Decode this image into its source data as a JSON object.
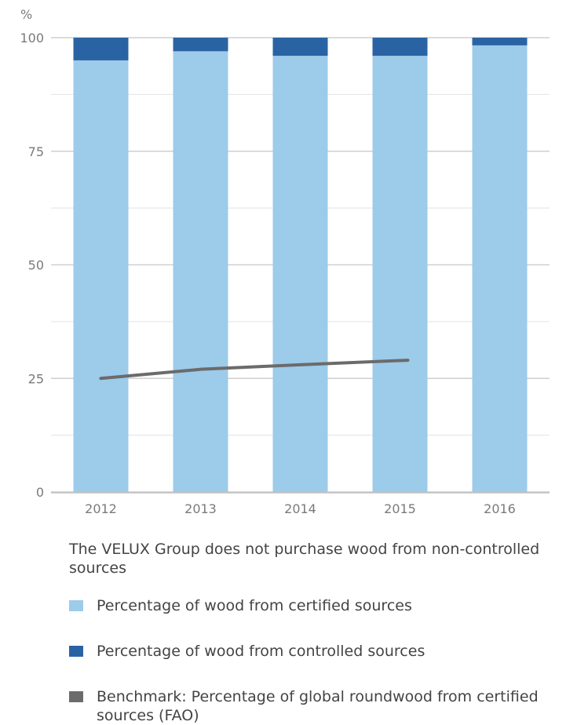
{
  "chart_data": {
    "type": "bar",
    "stacked": true,
    "ylabel": "%",
    "ylim": [
      0,
      100
    ],
    "yticks": [
      0,
      25,
      50,
      75,
      100
    ],
    "grid": true,
    "categories": [
      "2012",
      "2013",
      "2014",
      "2015",
      "2016"
    ],
    "series": [
      {
        "name": "Percentage of wood from certified sources",
        "kind": "bar",
        "color": "#9dcbea",
        "values": [
          95,
          97,
          96,
          96,
          98.3
        ]
      },
      {
        "name": "Percentage of wood from controlled sources",
        "kind": "bar",
        "color": "#2a63a3",
        "values": [
          5,
          3,
          4,
          4,
          1.7
        ]
      },
      {
        "name": "Benchmark: Percentage of global roundwood from certified sources (FAO)",
        "kind": "line",
        "color": "#6b6b6b",
        "x": [
          "2012",
          "2013",
          "2014",
          "2015"
        ],
        "values": [
          25,
          27,
          28,
          29
        ]
      }
    ]
  },
  "note": "The VELUX Group does not purchase wood from non-controlled sources",
  "legend": [
    {
      "label": "Percentage of wood from certified sources",
      "color": "#9dcbea"
    },
    {
      "label": "Percentage of wood from controlled sources",
      "color": "#2a63a3"
    },
    {
      "label": "Benchmark: Percentage of global roundwood from certified sources (FAO)",
      "color": "#6b6b6b"
    }
  ]
}
